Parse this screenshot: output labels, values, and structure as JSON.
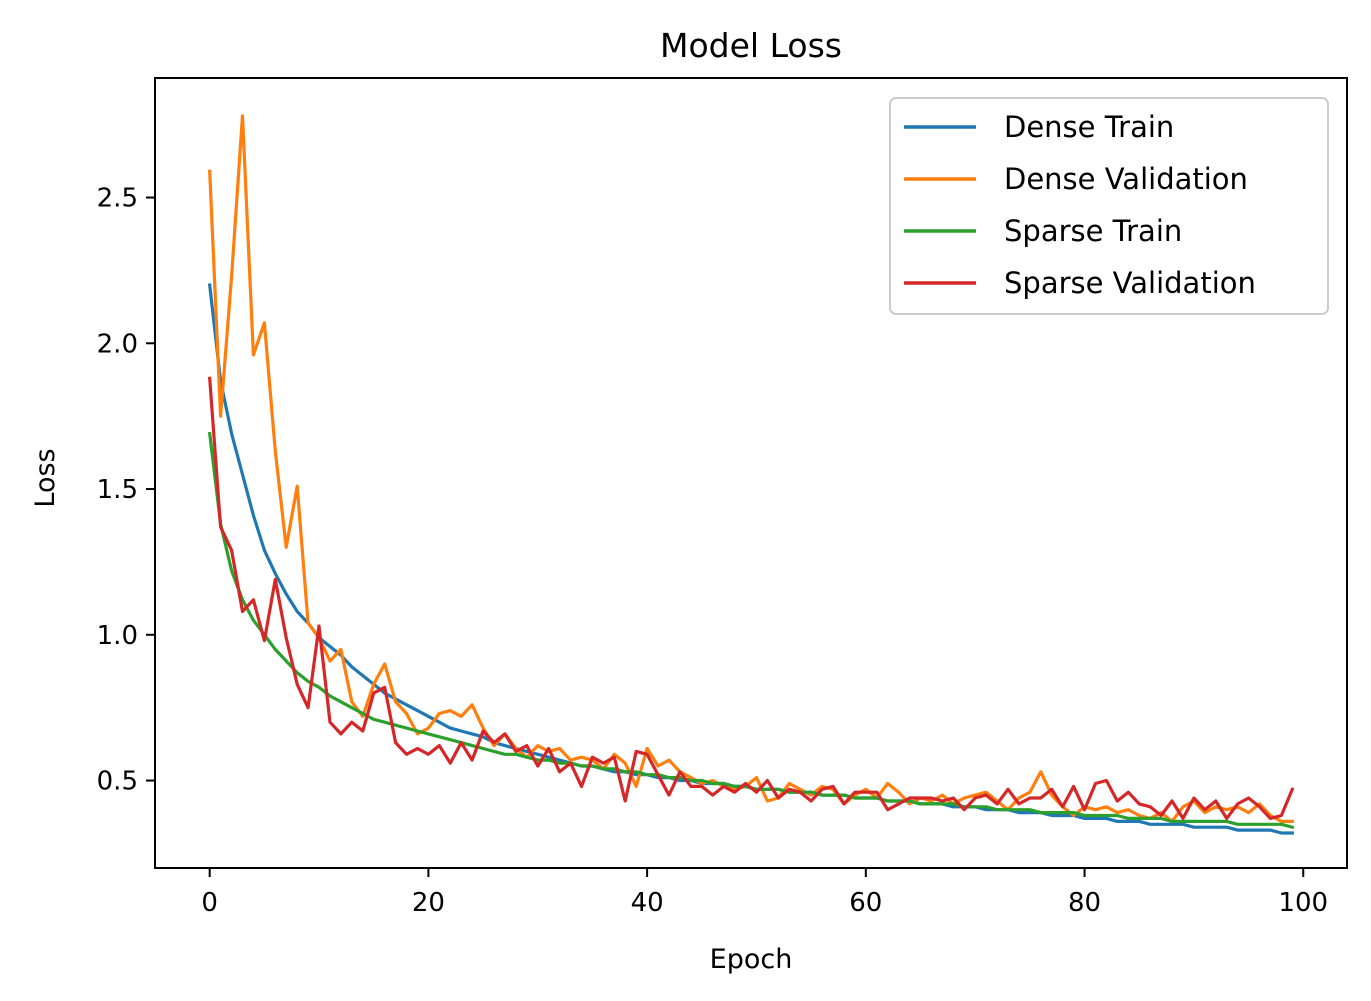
{
  "chart_data": {
    "type": "line",
    "title": "Model Loss",
    "xlabel": "Epoch",
    "ylabel": "Loss",
    "xlim": [
      -5,
      104
    ],
    "ylim": [
      0.2,
      2.91
    ],
    "xticks": [
      0,
      20,
      40,
      60,
      80,
      100
    ],
    "yticks": [
      0.5,
      1.0,
      1.5,
      2.0,
      2.5
    ],
    "xtick_labels": [
      "0",
      "20",
      "40",
      "60",
      "80",
      "100"
    ],
    "ytick_labels": [
      "0.5",
      "1.0",
      "1.5",
      "2.0",
      "2.5"
    ],
    "grid": false,
    "legend_position": "top-right",
    "x": [
      0,
      1,
      2,
      3,
      4,
      5,
      6,
      7,
      8,
      9,
      10,
      11,
      12,
      13,
      14,
      15,
      16,
      17,
      18,
      19,
      20,
      21,
      22,
      23,
      24,
      25,
      26,
      27,
      28,
      29,
      30,
      31,
      32,
      33,
      34,
      35,
      36,
      37,
      38,
      39,
      40,
      41,
      42,
      43,
      44,
      45,
      46,
      47,
      48,
      49,
      50,
      51,
      52,
      53,
      54,
      55,
      56,
      57,
      58,
      59,
      60,
      61,
      62,
      63,
      64,
      65,
      66,
      67,
      68,
      69,
      70,
      71,
      72,
      73,
      74,
      75,
      76,
      77,
      78,
      79,
      80,
      81,
      82,
      83,
      84,
      85,
      86,
      87,
      88,
      89,
      90,
      91,
      92,
      93,
      94,
      95,
      96,
      97,
      98,
      99
    ],
    "series": [
      {
        "name": "Dense Train",
        "color": "#1f77b4",
        "values": [
          2.2,
          1.87,
          1.69,
          1.55,
          1.41,
          1.29,
          1.21,
          1.14,
          1.08,
          1.04,
          0.99,
          0.96,
          0.93,
          0.89,
          0.86,
          0.83,
          0.8,
          0.78,
          0.76,
          0.74,
          0.72,
          0.7,
          0.68,
          0.67,
          0.66,
          0.65,
          0.63,
          0.62,
          0.61,
          0.6,
          0.59,
          0.58,
          0.57,
          0.56,
          0.55,
          0.55,
          0.54,
          0.53,
          0.53,
          0.52,
          0.52,
          0.51,
          0.51,
          0.5,
          0.5,
          0.49,
          0.49,
          0.49,
          0.48,
          0.48,
          0.47,
          0.47,
          0.47,
          0.46,
          0.46,
          0.46,
          0.45,
          0.45,
          0.45,
          0.44,
          0.44,
          0.44,
          0.43,
          0.43,
          0.43,
          0.42,
          0.42,
          0.42,
          0.41,
          0.41,
          0.41,
          0.4,
          0.4,
          0.4,
          0.39,
          0.39,
          0.39,
          0.38,
          0.38,
          0.38,
          0.37,
          0.37,
          0.37,
          0.36,
          0.36,
          0.36,
          0.35,
          0.35,
          0.35,
          0.35,
          0.34,
          0.34,
          0.34,
          0.34,
          0.33,
          0.33,
          0.33,
          0.33,
          0.32,
          0.32
        ]
      },
      {
        "name": "Dense Validation",
        "color": "#ff7f0e",
        "values": [
          2.59,
          1.75,
          2.23,
          2.78,
          1.96,
          2.07,
          1.63,
          1.3,
          1.51,
          1.04,
          0.99,
          0.91,
          0.95,
          0.77,
          0.72,
          0.83,
          0.9,
          0.77,
          0.73,
          0.66,
          0.68,
          0.73,
          0.74,
          0.72,
          0.76,
          0.68,
          0.62,
          0.66,
          0.61,
          0.58,
          0.62,
          0.6,
          0.61,
          0.57,
          0.58,
          0.57,
          0.54,
          0.59,
          0.56,
          0.48,
          0.61,
          0.55,
          0.57,
          0.53,
          0.51,
          0.49,
          0.5,
          0.48,
          0.47,
          0.48,
          0.51,
          0.43,
          0.44,
          0.49,
          0.47,
          0.45,
          0.48,
          0.47,
          0.42,
          0.45,
          0.47,
          0.44,
          0.49,
          0.46,
          0.42,
          0.44,
          0.43,
          0.45,
          0.42,
          0.44,
          0.45,
          0.46,
          0.43,
          0.4,
          0.44,
          0.46,
          0.53,
          0.45,
          0.41,
          0.38,
          0.41,
          0.4,
          0.41,
          0.39,
          0.4,
          0.38,
          0.37,
          0.39,
          0.36,
          0.41,
          0.43,
          0.39,
          0.41,
          0.4,
          0.41,
          0.39,
          0.42,
          0.38,
          0.36,
          0.36
        ]
      },
      {
        "name": "Sparse Train",
        "color": "#2ca02c",
        "values": [
          1.69,
          1.38,
          1.22,
          1.12,
          1.05,
          1.0,
          0.95,
          0.91,
          0.87,
          0.84,
          0.82,
          0.79,
          0.77,
          0.75,
          0.73,
          0.71,
          0.7,
          0.69,
          0.68,
          0.67,
          0.66,
          0.65,
          0.64,
          0.63,
          0.62,
          0.61,
          0.6,
          0.59,
          0.59,
          0.58,
          0.57,
          0.57,
          0.56,
          0.56,
          0.55,
          0.55,
          0.54,
          0.54,
          0.53,
          0.53,
          0.52,
          0.52,
          0.51,
          0.51,
          0.5,
          0.5,
          0.49,
          0.49,
          0.48,
          0.48,
          0.47,
          0.47,
          0.47,
          0.46,
          0.46,
          0.46,
          0.45,
          0.45,
          0.45,
          0.44,
          0.44,
          0.44,
          0.43,
          0.43,
          0.43,
          0.42,
          0.42,
          0.42,
          0.42,
          0.41,
          0.41,
          0.41,
          0.4,
          0.4,
          0.4,
          0.4,
          0.39,
          0.39,
          0.39,
          0.39,
          0.38,
          0.38,
          0.38,
          0.38,
          0.37,
          0.37,
          0.37,
          0.37,
          0.36,
          0.36,
          0.36,
          0.36,
          0.36,
          0.36,
          0.35,
          0.35,
          0.35,
          0.35,
          0.35,
          0.34
        ]
      },
      {
        "name": "Sparse Validation",
        "color": "#d62728",
        "values": [
          1.88,
          1.37,
          1.29,
          1.08,
          1.12,
          0.98,
          1.19,
          0.99,
          0.83,
          0.75,
          1.03,
          0.7,
          0.66,
          0.7,
          0.67,
          0.8,
          0.82,
          0.63,
          0.59,
          0.61,
          0.59,
          0.62,
          0.56,
          0.63,
          0.57,
          0.67,
          0.63,
          0.66,
          0.6,
          0.62,
          0.55,
          0.61,
          0.53,
          0.56,
          0.48,
          0.58,
          0.56,
          0.58,
          0.43,
          0.6,
          0.59,
          0.52,
          0.45,
          0.53,
          0.48,
          0.48,
          0.45,
          0.48,
          0.46,
          0.49,
          0.46,
          0.5,
          0.44,
          0.47,
          0.46,
          0.43,
          0.47,
          0.48,
          0.42,
          0.46,
          0.46,
          0.46,
          0.4,
          0.42,
          0.44,
          0.44,
          0.44,
          0.43,
          0.44,
          0.4,
          0.44,
          0.45,
          0.42,
          0.47,
          0.42,
          0.44,
          0.44,
          0.47,
          0.41,
          0.48,
          0.4,
          0.49,
          0.5,
          0.43,
          0.46,
          0.42,
          0.41,
          0.38,
          0.43,
          0.37,
          0.44,
          0.4,
          0.43,
          0.37,
          0.42,
          0.44,
          0.41,
          0.37,
          0.38,
          0.47
        ]
      }
    ]
  }
}
